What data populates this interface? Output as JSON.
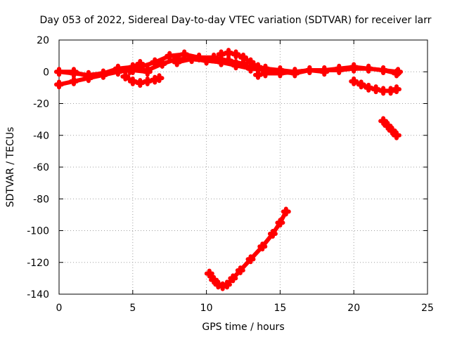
{
  "chart_data": {
    "type": "scatter",
    "title": "Day 053 of 2022, Sidereal Day-to-day VTEC variation (SDTVAR) for receiver larr",
    "xlabel": "GPS time / hours",
    "ylabel": "SDTVAR / TECUs",
    "xlim": [
      0,
      25
    ],
    "ylim": [
      -140,
      20
    ],
    "xticks": [
      0,
      5,
      10,
      15,
      20,
      25
    ],
    "yticks": [
      20,
      0,
      -20,
      -40,
      -60,
      -80,
      -100,
      -120,
      -140
    ],
    "grid": true,
    "marker_color": "#ff0000",
    "series": [
      {
        "x": [
          0,
          1,
          2,
          3,
          4,
          5,
          5.5
        ],
        "y": [
          0,
          -1,
          -2,
          -1,
          2,
          3,
          5
        ]
      },
      {
        "x": [
          0,
          1,
          2,
          3,
          4,
          5,
          6
        ],
        "y": [
          0,
          0,
          -3,
          -2,
          2,
          1,
          0
        ]
      },
      {
        "x": [
          0,
          1,
          2,
          3,
          4,
          4.8
        ],
        "y": [
          -8,
          -6,
          -4,
          -2,
          0,
          1
        ]
      },
      {
        "x": [
          4.5,
          5,
          5.5,
          6,
          6.5,
          6.8
        ],
        "y": [
          -3,
          -6,
          -7,
          -6,
          -5,
          -4
        ]
      },
      {
        "x": [
          5.5,
          6.5,
          7.5,
          8.5,
          9.5,
          10.5,
          11.5,
          12.5,
          13
        ],
        "y": [
          3,
          6,
          10,
          11,
          9,
          9,
          7,
          5,
          2
        ]
      },
      {
        "x": [
          6,
          7,
          8,
          9,
          10,
          11,
          12,
          13,
          14,
          15,
          16,
          17,
          18,
          19,
          20,
          21,
          22,
          23
        ],
        "y": [
          1,
          5,
          8,
          8,
          7,
          6,
          5,
          3,
          2,
          1,
          0,
          1,
          1,
          1,
          2,
          2,
          1,
          0
        ]
      },
      {
        "x": [
          8,
          9,
          10,
          11,
          12,
          13,
          14,
          15,
          16,
          17,
          18,
          19,
          20,
          21,
          22,
          22.9
        ],
        "y": [
          6,
          8,
          7,
          6,
          4,
          2,
          1,
          0,
          -1,
          1,
          1,
          2,
          3,
          2,
          1,
          -1
        ]
      },
      {
        "x": [
          11,
          11.5,
          12,
          12.5,
          13,
          13.5,
          14
        ],
        "y": [
          11,
          12,
          11,
          9,
          6,
          3,
          2
        ]
      },
      {
        "x": [
          13.5,
          14,
          15,
          16,
          17,
          18
        ],
        "y": [
          -2,
          -1,
          -1,
          0,
          1,
          0
        ]
      },
      {
        "x": [
          20,
          20.5,
          21,
          21.5,
          22,
          22.5,
          22.9
        ],
        "y": [
          -6,
          -8,
          -10,
          -11,
          -12,
          -12,
          -11
        ]
      },
      {
        "x": [
          22,
          22.3,
          22.6,
          22.9
        ],
        "y": [
          -31,
          -34,
          -37,
          -40
        ]
      },
      {
        "x": [
          10.2,
          10.5,
          10.8,
          11.1,
          11.4,
          11.8,
          12.3,
          13,
          13.8,
          14.5,
          15.0,
          15.4
        ],
        "y": [
          -127,
          -131,
          -134,
          -135,
          -134,
          -130,
          -125,
          -118,
          -110,
          -102,
          -95,
          -88
        ]
      }
    ]
  }
}
